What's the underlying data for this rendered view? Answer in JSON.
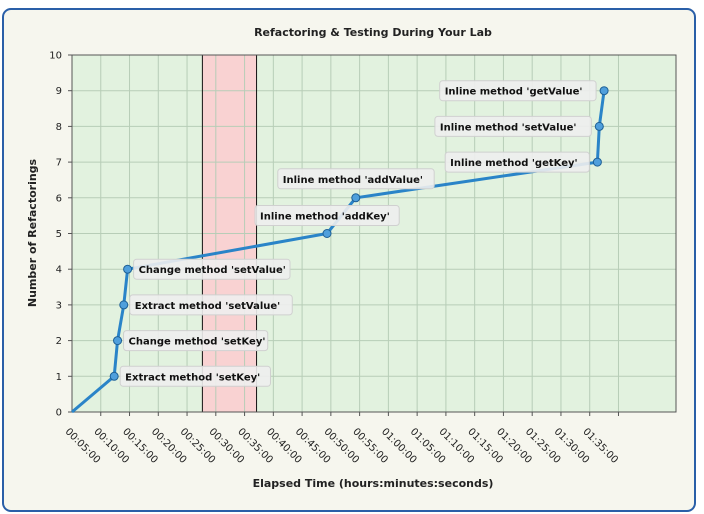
{
  "colors": {
    "frame_border": "#2a5fa8",
    "plot_background": "#e2f2df",
    "highlight_band": "#f9d2d2",
    "line": "#2a84c8",
    "marker_fill": "#4f9fdc",
    "annotation_box": "#eeeeee"
  },
  "chart_data": {
    "type": "line",
    "title": "Refactoring & Testing During Your Lab",
    "xlabel": "Elapsed Time (hours:minutes:seconds)",
    "ylabel": "Number of Refactorings",
    "x_unit": "seconds",
    "xlim": [
      0,
      6300
    ],
    "ylim": [
      0,
      10
    ],
    "yticks": [
      0,
      1,
      2,
      3,
      4,
      5,
      6,
      7,
      8,
      9,
      10
    ],
    "xticks": [
      {
        "value": 300,
        "label": "00:05:00"
      },
      {
        "value": 600,
        "label": "00:10:00"
      },
      {
        "value": 900,
        "label": "00:15:00"
      },
      {
        "value": 1200,
        "label": "00:20:00"
      },
      {
        "value": 1500,
        "label": "00:25:00"
      },
      {
        "value": 1800,
        "label": "00:30:00"
      },
      {
        "value": 2100,
        "label": "00:35:00"
      },
      {
        "value": 2400,
        "label": "00:40:00"
      },
      {
        "value": 2700,
        "label": "00:45:00"
      },
      {
        "value": 3000,
        "label": "00:50:00"
      },
      {
        "value": 3300,
        "label": "00:55:00"
      },
      {
        "value": 3600,
        "label": "01:00:00"
      },
      {
        "value": 3900,
        "label": "01:05:00"
      },
      {
        "value": 4200,
        "label": "01:10:00"
      },
      {
        "value": 4500,
        "label": "01:15:00"
      },
      {
        "value": 4800,
        "label": "01:20:00"
      },
      {
        "value": 5100,
        "label": "01:25:00"
      },
      {
        "value": 5400,
        "label": "01:30:00"
      },
      {
        "value": 5700,
        "label": "01:35:00"
      }
    ],
    "grid": true,
    "highlight_band": {
      "x_start": 1360,
      "x_end": 1925
    },
    "series": [
      {
        "points": [
          {
            "x": 0,
            "y": 0,
            "label": ""
          },
          {
            "x": 440,
            "y": 1,
            "label": "Extract method 'setKey'"
          },
          {
            "x": 475,
            "y": 2,
            "label": "Change method 'setKey'"
          },
          {
            "x": 540,
            "y": 3,
            "label": "Extract method 'setValue'"
          },
          {
            "x": 580,
            "y": 4,
            "label": "Change method 'setValue'"
          },
          {
            "x": 2660,
            "y": 5,
            "label": "Inline method 'addKey'"
          },
          {
            "x": 2960,
            "y": 6,
            "label": "Inline method 'addValue'"
          },
          {
            "x": 5480,
            "y": 7,
            "label": "Inline method 'getKey'"
          },
          {
            "x": 5500,
            "y": 8,
            "label": "Inline method 'setValue'"
          },
          {
            "x": 5550,
            "y": 9,
            "label": "Inline method 'getValue'"
          }
        ]
      }
    ]
  }
}
